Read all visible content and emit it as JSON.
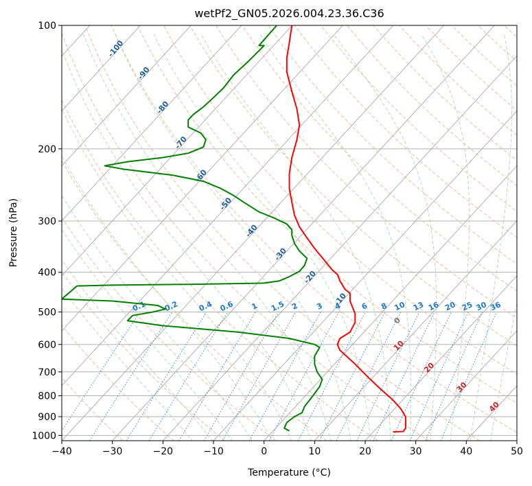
{
  "chart_data": {
    "type": "line",
    "title": "wetPf2_GN05.2026.004.23.36.C36",
    "xlabel": "Temperature (°C)",
    "ylabel": "Pressure (hPa)",
    "xlim": [
      -40,
      50
    ],
    "ylim": [
      1030,
      100
    ],
    "y_scale": "log",
    "grid": true,
    "x_ticks": [
      -40,
      -30,
      -20,
      -10,
      0,
      10,
      20,
      30,
      40,
      50
    ],
    "y_ticks": [
      1000,
      900,
      800,
      700,
      600,
      500,
      400,
      300,
      200,
      100
    ],
    "series": [
      {
        "color": "#ff0000",
        "points": [
          [
            25.5,
            980
          ],
          [
            27.5,
            978
          ],
          [
            28.0,
            960
          ],
          [
            28.0,
            900
          ],
          [
            27.0,
            860
          ],
          [
            25.5,
            820
          ],
          [
            23.0,
            770
          ],
          [
            20.5,
            720
          ],
          [
            18.0,
            670
          ],
          [
            15.0,
            620
          ],
          [
            14.5,
            600
          ],
          [
            15.0,
            580
          ],
          [
            17.0,
            560
          ],
          [
            18.0,
            530
          ],
          [
            18.0,
            505
          ],
          [
            17.0,
            470
          ],
          [
            17.0,
            450
          ],
          [
            16.0,
            440
          ],
          [
            15.0,
            420
          ],
          [
            14.5,
            405
          ],
          [
            13.5,
            395
          ],
          [
            12.0,
            375
          ],
          [
            10.0,
            350
          ],
          [
            8.5,
            330
          ],
          [
            7.0,
            310
          ],
          [
            6.0,
            290
          ],
          [
            5.5,
            270
          ],
          [
            5.0,
            250
          ],
          [
            5.0,
            230
          ],
          [
            5.5,
            210
          ],
          [
            6.5,
            190
          ],
          [
            7.0,
            175
          ],
          [
            6.5,
            160
          ],
          [
            5.5,
            145
          ],
          [
            4.5,
            130
          ],
          [
            4.5,
            120
          ],
          [
            5.0,
            110
          ],
          [
            5.5,
            100
          ]
        ]
      },
      {
        "color": "#008000",
        "points": [
          [
            5.0,
            975
          ],
          [
            4.0,
            960
          ],
          [
            4.5,
            930
          ],
          [
            6.0,
            900
          ],
          [
            7.5,
            880
          ],
          [
            8.0,
            850
          ],
          [
            9.0,
            820
          ],
          [
            10.0,
            790
          ],
          [
            11.0,
            760
          ],
          [
            11.5,
            730
          ],
          [
            10.5,
            700
          ],
          [
            10.0,
            670
          ],
          [
            10.0,
            640
          ],
          [
            11.0,
            610
          ],
          [
            10.0,
            600
          ],
          [
            5.0,
            580
          ],
          [
            -5.0,
            560
          ],
          [
            -20.0,
            540
          ],
          [
            -27.0,
            525
          ],
          [
            -26.0,
            510
          ],
          [
            -22.0,
            500
          ],
          [
            -19.5,
            492
          ],
          [
            -21.0,
            482
          ],
          [
            -30.0,
            470
          ],
          [
            -40.0,
            465
          ],
          [
            -37.0,
            432
          ],
          [
            -30.0,
            430
          ],
          [
            -15.0,
            428
          ],
          [
            0.0,
            425
          ],
          [
            3.0,
            420
          ],
          [
            5.0,
            410
          ],
          [
            7.0,
            398
          ],
          [
            8.0,
            385
          ],
          [
            8.5,
            370
          ],
          [
            7.0,
            355
          ],
          [
            6.0,
            340
          ],
          [
            5.5,
            325
          ],
          [
            5.5,
            315
          ],
          [
            4.5,
            305
          ],
          [
            2.0,
            295
          ],
          [
            -1.0,
            285
          ],
          [
            -4.0,
            270
          ],
          [
            -6.0,
            260
          ],
          [
            -8.5,
            250
          ],
          [
            -12.0,
            240
          ],
          [
            -18.0,
            232
          ],
          [
            -28.0,
            224
          ],
          [
            -31.5,
            220
          ],
          [
            -27.0,
            215
          ],
          [
            -20.0,
            210
          ],
          [
            -15.0,
            205
          ],
          [
            -12.0,
            198
          ],
          [
            -11.5,
            190
          ],
          [
            -12.5,
            183
          ],
          [
            -15.0,
            177
          ],
          [
            -15.0,
            170
          ],
          [
            -14.0,
            165
          ],
          [
            -12.0,
            158
          ],
          [
            -10.0,
            150
          ],
          [
            -8.0,
            142
          ],
          [
            -6.0,
            132
          ],
          [
            -3.0,
            122
          ],
          [
            0.0,
            112
          ],
          [
            -1.0,
            112
          ],
          [
            2.5,
            100
          ]
        ]
      }
    ],
    "dry_adiabat_labels": [
      "-100",
      "-90",
      "-80",
      "-70",
      "-60",
      "-50",
      "-40",
      "-30",
      "-20",
      "-10"
    ],
    "moist_adiabat_labels": [
      "10",
      "20",
      "30",
      "40"
    ],
    "mixing_ratio_labels": [
      "0.1",
      "0.2",
      "0.4",
      "0.6",
      "1",
      "1.5",
      "2",
      "3",
      "4",
      "6",
      "8",
      "10",
      "13",
      "16",
      "20",
      "25",
      "30",
      "36"
    ],
    "zero_label": "0",
    "colors": {
      "temperature": "#ff0000",
      "dewpoint": "#008000",
      "isotherm": "#aaaaaa",
      "dry_adiabat": "#f4a582",
      "moist_adiabat": "#a6d5a6",
      "mixing_ratio": "#1f78d1",
      "dry_label": "#1f5fa0",
      "moist_label": "#c8262a"
    }
  }
}
